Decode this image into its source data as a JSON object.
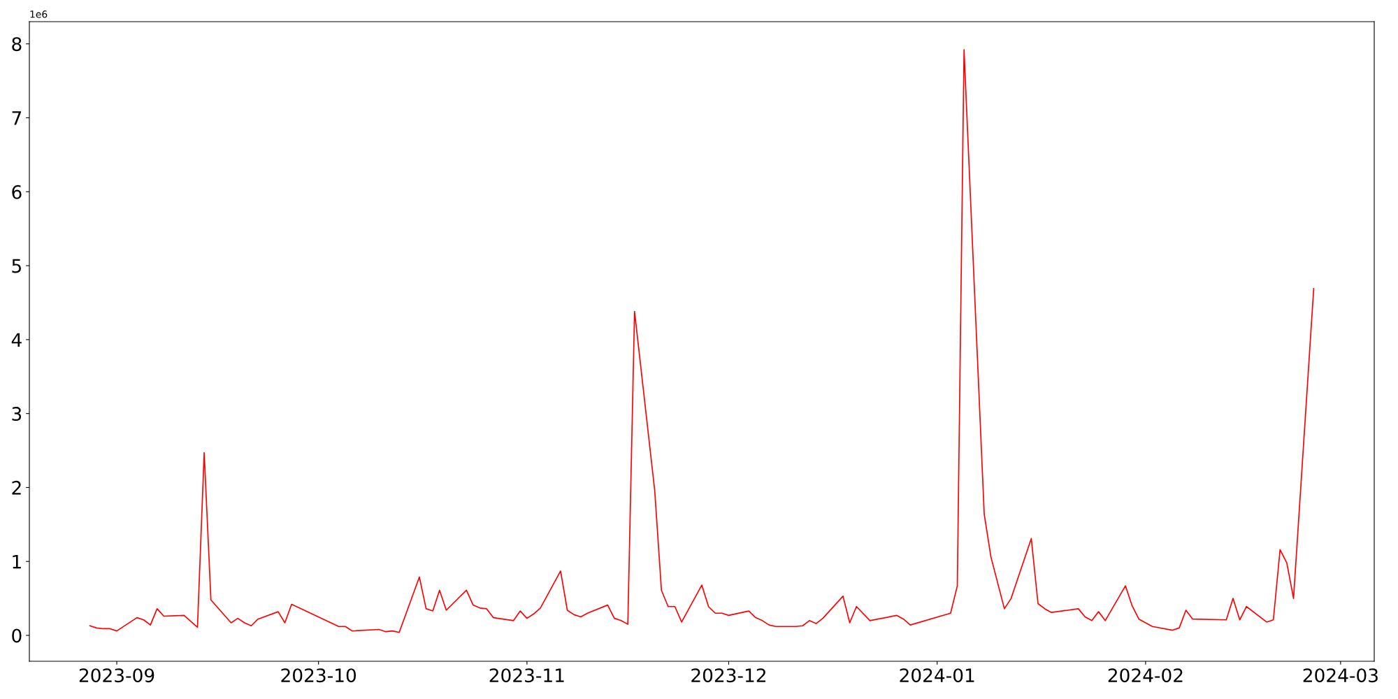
{
  "chart_data": {
    "type": "line",
    "x": [
      "2023-08-28",
      "2023-08-29",
      "2023-08-30",
      "2023-08-31",
      "2023-09-01",
      "2023-09-04",
      "2023-09-05",
      "2023-09-06",
      "2023-09-07",
      "2023-09-08",
      "2023-09-11",
      "2023-09-12",
      "2023-09-13",
      "2023-09-14",
      "2023-09-15",
      "2023-09-18",
      "2023-09-19",
      "2023-09-20",
      "2023-09-21",
      "2023-09-22",
      "2023-09-25",
      "2023-09-26",
      "2023-09-27",
      "2023-10-04",
      "2023-10-05",
      "2023-10-06",
      "2023-10-10",
      "2023-10-11",
      "2023-10-12",
      "2023-10-13",
      "2023-10-16",
      "2023-10-17",
      "2023-10-18",
      "2023-10-19",
      "2023-10-20",
      "2023-10-23",
      "2023-10-24",
      "2023-10-25",
      "2023-10-26",
      "2023-10-27",
      "2023-10-30",
      "2023-10-31",
      "2023-11-01",
      "2023-11-02",
      "2023-11-03",
      "2023-11-06",
      "2023-11-07",
      "2023-11-08",
      "2023-11-09",
      "2023-11-10",
      "2023-11-13",
      "2023-11-14",
      "2023-11-15",
      "2023-11-16",
      "2023-11-17",
      "2023-11-20",
      "2023-11-21",
      "2023-11-22",
      "2023-11-23",
      "2023-11-24",
      "2023-11-27",
      "2023-11-28",
      "2023-11-29",
      "2023-11-30",
      "2023-12-01",
      "2023-12-04",
      "2023-12-05",
      "2023-12-06",
      "2023-12-07",
      "2023-12-08",
      "2023-12-11",
      "2023-12-12",
      "2023-12-13",
      "2023-12-14",
      "2023-12-15",
      "2023-12-18",
      "2023-12-19",
      "2023-12-20",
      "2023-12-22",
      "2023-12-26",
      "2023-12-27",
      "2023-12-28",
      "2024-01-03",
      "2024-01-04",
      "2024-01-05",
      "2024-01-08",
      "2024-01-09",
      "2024-01-11",
      "2024-01-12",
      "2024-01-15",
      "2024-01-16",
      "2024-01-17",
      "2024-01-18",
      "2024-01-22",
      "2024-01-23",
      "2024-01-24",
      "2024-01-25",
      "2024-01-26",
      "2024-01-29",
      "2024-01-30",
      "2024-01-31",
      "2024-02-02",
      "2024-02-05",
      "2024-02-06",
      "2024-02-07",
      "2024-02-08",
      "2024-02-13",
      "2024-02-14",
      "2024-02-15",
      "2024-02-16",
      "2024-02-19",
      "2024-02-20",
      "2024-02-21",
      "2024-02-22",
      "2024-02-23",
      "2024-02-26"
    ],
    "series": [
      {
        "color": "#ff0000",
        "values": [
          0.13,
          0.1,
          0.09,
          0.09,
          0.06,
          0.24,
          0.21,
          0.14,
          0.36,
          0.26,
          0.27,
          0.19,
          0.11,
          2.47,
          0.48,
          0.17,
          0.23,
          0.17,
          0.13,
          0.22,
          0.32,
          0.17,
          0.42,
          0.12,
          0.12,
          0.06,
          0.08,
          0.05,
          0.06,
          0.04,
          0.79,
          0.36,
          0.33,
          0.61,
          0.34,
          0.61,
          0.41,
          0.37,
          0.36,
          0.24,
          0.2,
          0.33,
          0.23,
          0.29,
          0.37,
          0.87,
          0.34,
          0.28,
          0.25,
          0.3,
          0.41,
          0.23,
          0.2,
          0.15,
          4.38,
          1.96,
          0.61,
          0.39,
          0.39,
          0.18,
          0.68,
          0.39,
          0.3,
          0.3,
          0.27,
          0.33,
          0.24,
          0.2,
          0.14,
          0.12,
          0.12,
          0.13,
          0.2,
          0.16,
          0.23,
          0.53,
          0.17,
          0.39,
          0.2,
          0.27,
          0.22,
          0.14,
          0.3,
          0.67,
          7.92,
          1.64,
          1.06,
          0.36,
          0.5,
          1.31,
          0.43,
          0.36,
          0.31,
          0.36,
          0.25,
          0.2,
          0.32,
          0.2,
          0.67,
          0.4,
          0.22,
          0.12,
          0.07,
          0.1,
          0.34,
          0.22,
          0.21,
          0.5,
          0.21,
          0.39,
          0.18,
          0.21,
          1.16,
          0.98,
          0.5,
          4.69
        ]
      }
    ],
    "xlim": [
      "2023-08-19",
      "2024-03-06"
    ],
    "xticks": [
      {
        "value": "2023-09-01",
        "label": "2023-09"
      },
      {
        "value": "2023-10-01",
        "label": "2023-10"
      },
      {
        "value": "2023-11-01",
        "label": "2023-11"
      },
      {
        "value": "2023-12-01",
        "label": "2023-12"
      },
      {
        "value": "2024-01-01",
        "label": "2024-01"
      },
      {
        "value": "2024-02-01",
        "label": "2024-02"
      },
      {
        "value": "2024-03-01",
        "label": "2024-03"
      }
    ],
    "ylim": [
      -0.35,
      8.3
    ],
    "yticks": [
      0,
      1,
      2,
      3,
      4,
      5,
      6,
      7,
      8
    ],
    "annotations": [
      "1e6"
    ],
    "grid": false,
    "legend": false,
    "marker": "none",
    "line_style": "solid"
  }
}
